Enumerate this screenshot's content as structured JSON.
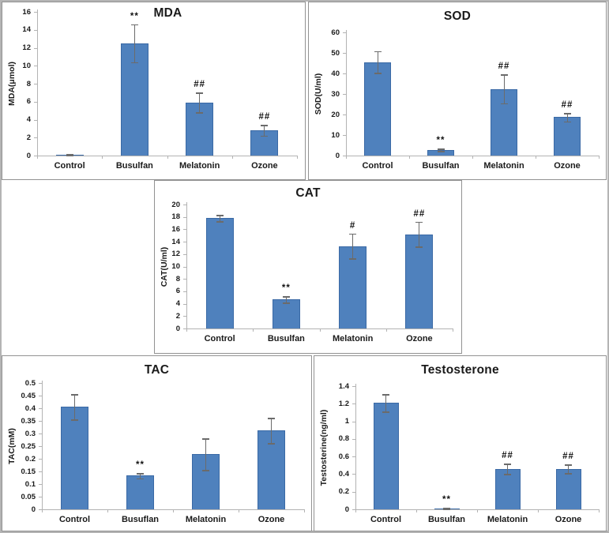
{
  "figure": {
    "background": "#ffffff",
    "bar_fill": "#4f81bd",
    "bar_border": "#3a69a5",
    "axis_color": "#b3b3b3",
    "error_bar_color": "#6b6b6b",
    "text_color": "#1a1a1a",
    "panel_border": "#929292"
  },
  "chart_data": [
    {
      "id": "mda",
      "type": "bar",
      "title": "MDA",
      "ylabel": "MDA(μmol)",
      "xlabel": "",
      "categories": [
        "Control",
        "Busulfan",
        "Melatonin",
        "Ozone"
      ],
      "values": [
        0.1,
        12.5,
        5.9,
        2.8
      ],
      "errors": [
        0.05,
        2.1,
        1.1,
        0.6
      ],
      "annotations": [
        "",
        "**",
        "##",
        "##"
      ],
      "ylim": [
        0,
        16
      ],
      "yticks": [
        "0",
        "2",
        "4",
        "6",
        "8",
        "10",
        "12",
        "14",
        "16"
      ],
      "grid": false,
      "legend": "none"
    },
    {
      "id": "sod",
      "type": "bar",
      "title": "SOD",
      "ylabel": "SOD(U/ml)",
      "xlabel": "",
      "categories": [
        "Control",
        "Busulfan",
        "Melatonin",
        "Ozone"
      ],
      "values": [
        45.5,
        2.8,
        32.5,
        18.7
      ],
      "errors": [
        5.3,
        0.6,
        7.0,
        2.0
      ],
      "annotations": [
        "",
        "**",
        "##",
        "##"
      ],
      "ylim": [
        0,
        60
      ],
      "yticks": [
        "0",
        "10",
        "20",
        "30",
        "40",
        "50",
        "60"
      ],
      "grid": false,
      "legend": "none"
    },
    {
      "id": "cat",
      "type": "bar",
      "title": "CAT",
      "ylabel": "CAT(U/ml)",
      "xlabel": "",
      "categories": [
        "Control",
        "Busulfan",
        "Melatonin",
        "Ozone"
      ],
      "values": [
        17.8,
        4.7,
        13.3,
        15.2
      ],
      "errors": [
        0.5,
        0.5,
        2.0,
        2.0
      ],
      "annotations": [
        "",
        "**",
        "#",
        "##"
      ],
      "ylim": [
        0,
        20
      ],
      "yticks": [
        "0",
        "2",
        "4",
        "6",
        "8",
        "10",
        "12",
        "14",
        "16",
        "18",
        "20"
      ],
      "grid": false,
      "legend": "none"
    },
    {
      "id": "tac",
      "type": "bar",
      "title": "TAC",
      "ylabel": "TAC(mM)",
      "xlabel": "",
      "categories": [
        "Control",
        "Busuflan",
        "Melatonin",
        "Ozone"
      ],
      "values": [
        0.405,
        0.133,
        0.218,
        0.312
      ],
      "errors": [
        0.05,
        0.01,
        0.062,
        0.05
      ],
      "annotations": [
        "",
        "**",
        "",
        ""
      ],
      "ylim": [
        0,
        0.5
      ],
      "yticks": [
        "0",
        "0.05",
        "0.1",
        "0.15",
        "0.2",
        "0.25",
        "0.3",
        "0.35",
        "0.4",
        "0.45",
        "0.5"
      ],
      "grid": false,
      "legend": "none"
    },
    {
      "id": "testosterone",
      "type": "bar",
      "title": "Testosterone",
      "ylabel": "Testosterine(ng/ml)",
      "xlabel": "",
      "categories": [
        "Control",
        "Busulfan",
        "Melatonin",
        "Ozone"
      ],
      "values": [
        1.21,
        0.01,
        0.46,
        0.46
      ],
      "errors": [
        0.1,
        0.005,
        0.06,
        0.05
      ],
      "annotations": [
        "",
        "**",
        "##",
        "##"
      ],
      "ylim": [
        0,
        1.4
      ],
      "yticks": [
        "0",
        "0.2",
        "0.4",
        "0.6",
        "0.8",
        "1",
        "1.2",
        "1.4"
      ],
      "grid": false,
      "legend": "none"
    }
  ]
}
